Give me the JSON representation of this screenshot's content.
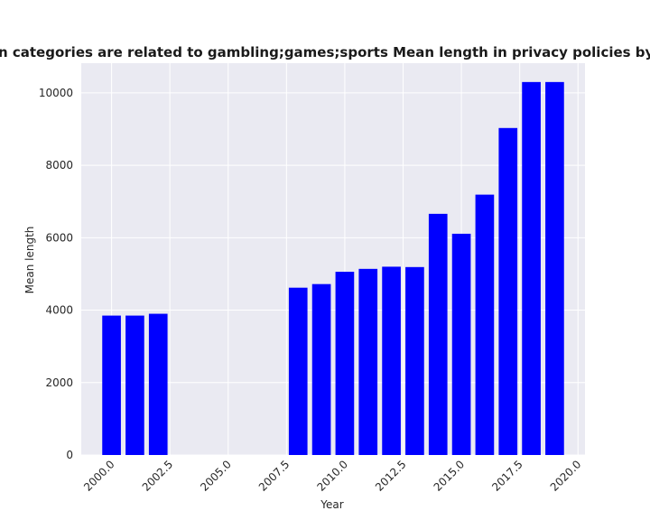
{
  "chart_data": {
    "type": "bar",
    "title": "when categories are related to gambling;games;sports Mean length in privacy policies by Year",
    "xlabel": "Year",
    "ylabel": "Mean length",
    "x": [
      2000,
      2001,
      2002,
      2008,
      2009,
      2010,
      2011,
      2012,
      2013,
      2014,
      2015,
      2016,
      2017,
      2018,
      2019
    ],
    "values": [
      3850,
      3850,
      3900,
      4620,
      4720,
      5060,
      5140,
      5200,
      5190,
      6660,
      6110,
      7190,
      9030,
      10300,
      10300
    ],
    "xlim": [
      1998.7,
      2020.3
    ],
    "ylim": [
      0,
      10820
    ],
    "xticks": [
      2000.0,
      2002.5,
      2005.0,
      2007.5,
      2010.0,
      2012.5,
      2015.0,
      2017.5,
      2020.0
    ],
    "xtick_labels": [
      "2000.0",
      "2002.5",
      "2005.0",
      "2007.5",
      "2010.0",
      "2012.5",
      "2015.0",
      "2017.5",
      "2020.0"
    ],
    "yticks": [
      0,
      2000,
      4000,
      6000,
      8000,
      10000
    ],
    "ytick_labels": [
      "0",
      "2000",
      "4000",
      "6000",
      "8000",
      "10000"
    ],
    "bar_width": 0.8,
    "grid": true,
    "colors": {
      "bar": "#0000ff",
      "plot_background": "#eaeaf2",
      "grid": "#ffffff"
    }
  }
}
